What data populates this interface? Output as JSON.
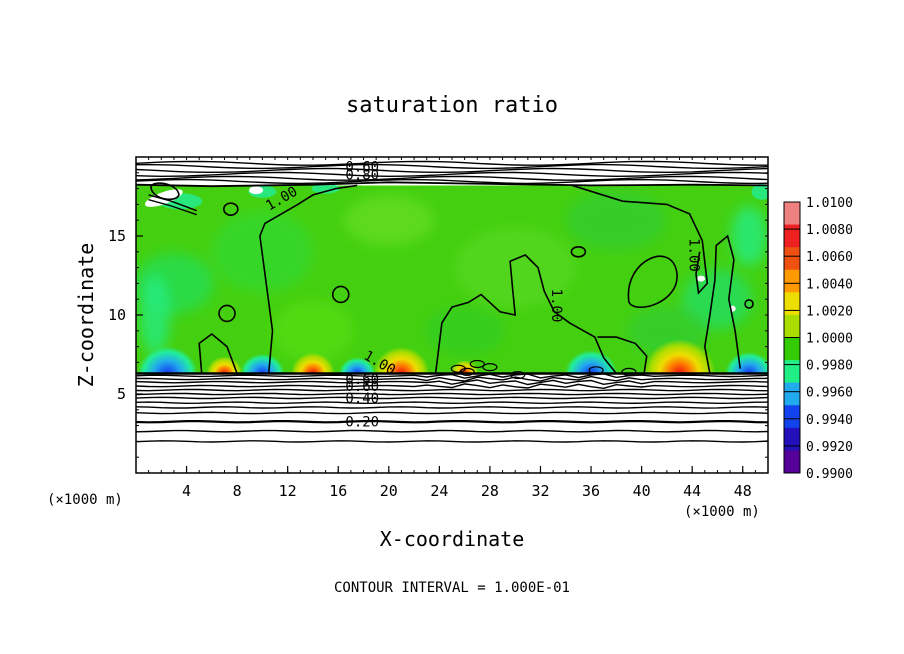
{
  "chart_data": {
    "type": "heatmap",
    "title": "saturation ratio",
    "xlabel": "X-coordinate",
    "ylabel": "Z-coordinate",
    "x_units": "(×1000 m)",
    "x_units_left": "(×1000 m)",
    "xlim": [
      0,
      50
    ],
    "ylim": [
      0,
      20
    ],
    "x_ticks": [
      4,
      8,
      12,
      16,
      20,
      24,
      28,
      32,
      36,
      40,
      44,
      48
    ],
    "y_ticks": [
      5,
      10,
      15
    ],
    "footer": "CONTOUR INTERVAL = 1.000E-01",
    "colorbar": {
      "levels": [
        "1.0100",
        "1.0080",
        "1.0060",
        "1.0040",
        "1.0020",
        "1.0000",
        "0.9980",
        "0.9960",
        "0.9940",
        "0.9920",
        "0.9900"
      ],
      "colors": [
        "#ee8080",
        "#ee2020",
        "#ee5010",
        "#ff9900",
        "#eedd00",
        "#aadd00",
        "#33cc00",
        "#22ee88",
        "#22aaee",
        "#1144ee",
        "#2211bb",
        "#550099"
      ]
    },
    "cloud_layer": {
      "base_z": 6.3,
      "top_z": 18.2
    },
    "contour_labels": [
      {
        "text": "1.00",
        "x": 11.5,
        "z": 17.4
      },
      {
        "text": "1.00",
        "x": 44.2,
        "z": 13.8
      },
      {
        "text": "1.00",
        "x": 33.3,
        "z": 10.6
      },
      {
        "text": "1.00",
        "x": 19.3,
        "z": 7.0
      },
      {
        "text": "0.60",
        "x": 17.9,
        "z": 5.95
      },
      {
        "text": "0.60",
        "x": 17.9,
        "z": 5.5
      },
      {
        "text": "0.40",
        "x": 17.9,
        "z": 4.75
      },
      {
        "text": "0.20",
        "x": 17.9,
        "z": 3.25
      },
      {
        "text": "0.60",
        "x": 17.9,
        "z": 19.4
      },
      {
        "text": "0.80",
        "x": 17.9,
        "z": 18.9
      }
    ]
  }
}
